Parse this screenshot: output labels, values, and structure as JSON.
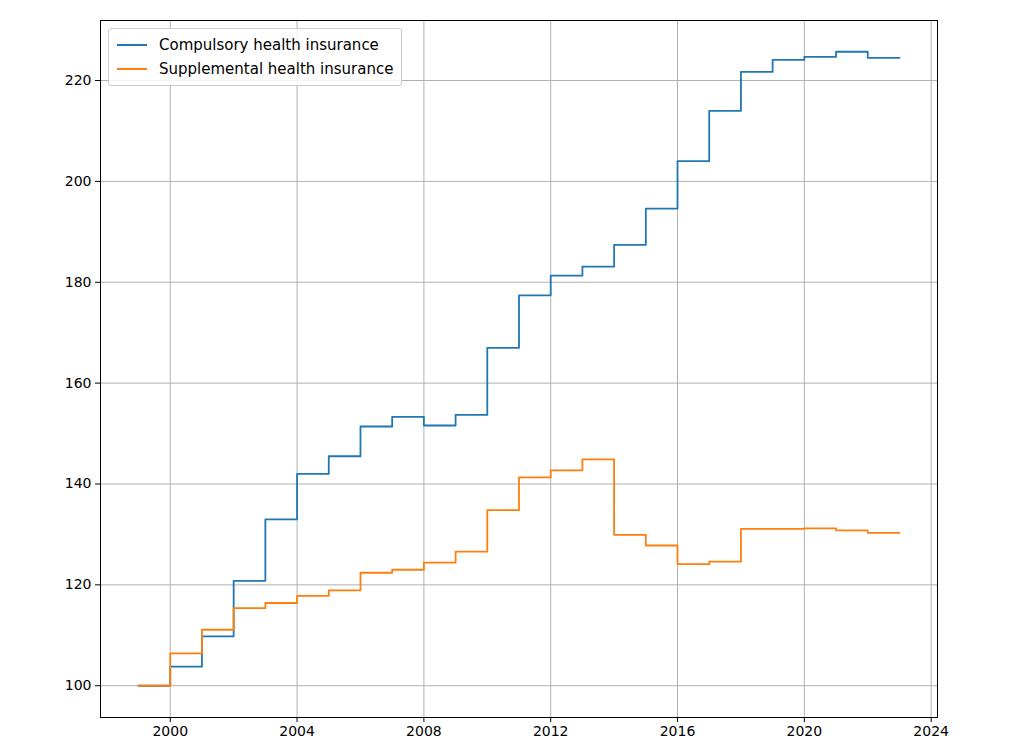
{
  "chart_data": {
    "type": "line",
    "line_style": "step",
    "x": [
      1999,
      2000,
      2001,
      2002,
      2003,
      2004,
      2005,
      2006,
      2007,
      2008,
      2009,
      2010,
      2011,
      2012,
      2013,
      2014,
      2015,
      2016,
      2017,
      2018,
      2019,
      2020,
      2021,
      2022,
      2023
    ],
    "series": [
      {
        "name": "Compulsory health insurance",
        "color": "#1f77b4",
        "values": [
          100,
          103.8,
          109.8,
          120.8,
          133,
          142,
          145.5,
          151.4,
          153.3,
          151.6,
          153.7,
          167,
          177.4,
          181.3,
          183.1,
          187.4,
          194.6,
          204,
          214,
          221.7,
          224.1,
          224.7,
          225.7,
          224.5,
          224.5
        ]
      },
      {
        "name": "Supplemental health insurance",
        "color": "#ff7f0e",
        "values": [
          100,
          106.4,
          111.1,
          115.4,
          116.4,
          117.8,
          118.9,
          122.4,
          123,
          124.4,
          126.6,
          134.8,
          141.3,
          142.7,
          144.9,
          129.9,
          127.8,
          124.1,
          124.6,
          131.1,
          131.1,
          131.2,
          130.8,
          130.3,
          130.3
        ]
      }
    ],
    "xlim": [
      1997.8,
      2024.2
    ],
    "xticks": [
      2000,
      2004,
      2008,
      2012,
      2016,
      2020,
      2024
    ],
    "ylim": [
      93.7,
      231.9
    ],
    "yticks": [
      100,
      120,
      140,
      160,
      180,
      200,
      220
    ],
    "grid": true,
    "legend": "upper left"
  }
}
